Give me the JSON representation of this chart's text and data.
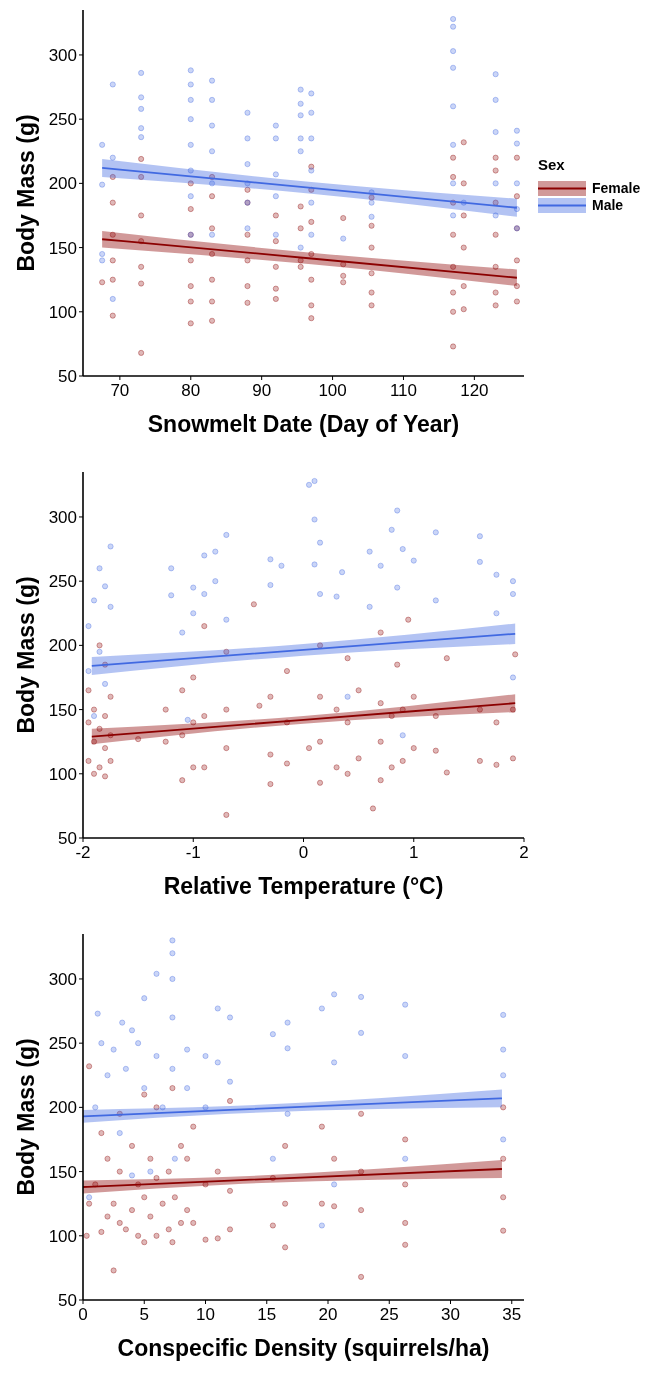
{
  "chart_data": [
    {
      "type": "scatter",
      "xlabel": "Snowmelt Date (Day of Year)",
      "ylabel": "Body Mass (g)",
      "legend_title": "Sex",
      "legend": "right",
      "grid": false,
      "xlim": [
        64.8,
        127
      ],
      "xticks": [
        70,
        80,
        90,
        100,
        110,
        120
      ],
      "ylim": [
        50,
        335
      ],
      "yticks": [
        50,
        100,
        150,
        200,
        250,
        300
      ],
      "series": [
        {
          "marker": "circle",
          "color": "#8b0000",
          "x": [
            67.5,
            69,
            69,
            69,
            69,
            69,
            69,
            73,
            73,
            73,
            73,
            73,
            73,
            73,
            80,
            80,
            80,
            80,
            80,
            80,
            80,
            83,
            83,
            83,
            83,
            83,
            83,
            83,
            88,
            88,
            88,
            88,
            88,
            88,
            92,
            92,
            92,
            92,
            92,
            95.5,
            95.5,
            95.5,
            95.5,
            97,
            97,
            97,
            97,
            97,
            97,
            97,
            101.5,
            101.5,
            101.5,
            101.5,
            105.5,
            105.5,
            105.5,
            105.5,
            105.5,
            105.5,
            117,
            117,
            117,
            117,
            117,
            117,
            117,
            117,
            118.5,
            118.5,
            118.5,
            118.5,
            118.5,
            118.5,
            123,
            123,
            123,
            123,
            123,
            123,
            123,
            126,
            126,
            126,
            126,
            126,
            126
          ],
          "values": [
            123,
            97,
            125,
            140,
            160,
            185,
            205,
            68,
            122,
            135,
            155,
            175,
            205,
            219,
            91,
            108,
            120,
            140,
            160,
            180,
            200,
            93,
            108,
            125,
            145,
            165,
            190,
            205,
            107,
            120,
            140,
            160,
            185,
            195,
            110,
            118,
            135,
            155,
            175,
            135,
            140,
            165,
            182,
            95,
            105,
            125,
            145,
            170,
            195,
            213,
            123,
            128,
            137,
            173,
            105,
            115,
            130,
            150,
            167,
            189,
            73,
            100,
            115,
            135,
            160,
            185,
            205,
            220,
            102,
            120,
            150,
            175,
            200,
            232,
            105,
            115,
            135,
            160,
            185,
            210,
            220,
            108,
            120,
            140,
            165,
            190,
            220
          ]
        },
        {
          "marker": "circle",
          "color": "#4169e1",
          "x": [
            67.5,
            67.5,
            67.5,
            67.5,
            69,
            69,
            69,
            73,
            73,
            73,
            73,
            73,
            80,
            80,
            80,
            80,
            80,
            80,
            80,
            80,
            83,
            83,
            83,
            83,
            83,
            83,
            88,
            88,
            88,
            88,
            88,
            88,
            92,
            92,
            92,
            92,
            92,
            95.5,
            95.5,
            95.5,
            95.5,
            95.5,
            95.5,
            97,
            97,
            97,
            97,
            97,
            97,
            101.5,
            105.5,
            105.5,
            105.5,
            117,
            117,
            117,
            117,
            117,
            117,
            117,
            117,
            118.5,
            123,
            123,
            123,
            123,
            123,
            126,
            126,
            126,
            126,
            126
          ],
          "values": [
            140,
            145,
            230,
            199,
            110,
            220,
            277,
            236,
            243,
            258,
            267,
            286,
            160,
            190,
            210,
            230,
            250,
            265,
            277,
            288,
            160,
            200,
            225,
            245,
            265,
            280,
            165,
            185,
            200,
            215,
            235,
            255,
            160,
            190,
            207,
            235,
            245,
            150,
            225,
            235,
            253,
            262,
            273,
            160,
            185,
            210,
            235,
            255,
            270,
            157,
            174,
            185,
            193,
            175,
            200,
            230,
            260,
            290,
            303,
            322,
            328,
            185,
            175,
            200,
            240,
            265,
            285,
            165,
            180,
            200,
            231,
            241
          ]
        },
        {
          "type": "line",
          "name": "Female",
          "color": "#8b0000",
          "x": [
            67.5,
            97,
            126
          ],
          "values": [
            156.5,
            141.5,
            126.5
          ],
          "lower": [
            150,
            137,
            120
          ],
          "upper": [
            163,
            146,
            133
          ]
        },
        {
          "type": "line",
          "name": "Male",
          "color": "#4169e1",
          "x": [
            67.5,
            97,
            126
          ],
          "values": [
            212,
            196.5,
            181
          ],
          "lower": [
            205,
            192,
            174
          ],
          "upper": [
            219,
            201,
            188
          ]
        }
      ]
    },
    {
      "type": "scatter",
      "xlabel": "Relative Temperature (°C)",
      "ylabel": "Body Mass (g)",
      "grid": false,
      "xlim": [
        -2,
        2
      ],
      "xticks": [
        -2,
        -1,
        0,
        1,
        2
      ],
      "ylim": [
        50,
        335
      ],
      "yticks": [
        50,
        100,
        150,
        200,
        250,
        300
      ],
      "series": [
        {
          "marker": "circle",
          "color": "#8b0000",
          "x": [
            -1.95,
            -1.95,
            -1.95,
            -1.9,
            -1.9,
            -1.9,
            -1.85,
            -1.85,
            -1.85,
            -1.8,
            -1.8,
            -1.8,
            -1.8,
            -1.75,
            -1.75,
            -1.75,
            -1.5,
            -1.25,
            -1.25,
            -1.1,
            -1.1,
            -1.1,
            -1.0,
            -1.0,
            -1.0,
            -0.9,
            -0.9,
            -0.9,
            -0.7,
            -0.7,
            -0.7,
            -0.7,
            -0.45,
            -0.4,
            -0.3,
            -0.3,
            -0.3,
            -0.15,
            -0.15,
            -0.15,
            0.05,
            0.15,
            0.15,
            0.15,
            0.15,
            0.3,
            0.3,
            0.4,
            0.4,
            0.4,
            0.5,
            0.5,
            0.63,
            0.7,
            0.7,
            0.7,
            0.7,
            0.8,
            0.8,
            0.85,
            0.9,
            0.9,
            0.95,
            1.0,
            1.0,
            1.2,
            1.2,
            1.3,
            1.3,
            1.6,
            1.6,
            1.75,
            1.75,
            1.9,
            1.9,
            1.92
          ],
          "values": [
            110,
            140,
            165,
            100,
            125,
            150,
            105,
            135,
            200,
            98,
            120,
            145,
            185,
            110,
            130,
            160,
            127,
            125,
            150,
            95,
            130,
            165,
            105,
            140,
            175,
            105,
            145,
            215,
            68,
            120,
            150,
            195,
            232,
            153,
            92,
            115,
            160,
            108,
            140,
            180,
            120,
            93,
            125,
            160,
            200,
            105,
            150,
            100,
            140,
            190,
            112,
            165,
            73,
            95,
            125,
            155,
            210,
            105,
            145,
            185,
            110,
            150,
            220,
            120,
            160,
            118,
            145,
            101,
            190,
            110,
            150,
            107,
            140,
            112,
            150,
            193
          ]
        },
        {
          "marker": "circle",
          "color": "#4169e1",
          "x": [
            -1.95,
            -1.95,
            -1.9,
            -1.9,
            -1.85,
            -1.85,
            -1.8,
            -1.8,
            -1.75,
            -1.75,
            -1.2,
            -1.2,
            -1.1,
            -1.05,
            -1.0,
            -1.0,
            -0.9,
            -0.9,
            -0.8,
            -0.8,
            -0.7,
            -0.7,
            -0.3,
            -0.3,
            -0.2,
            0.05,
            0.1,
            0.1,
            0.1,
            0.15,
            0.15,
            0.3,
            0.35,
            0.4,
            0.6,
            0.6,
            0.7,
            0.8,
            0.85,
            0.85,
            0.9,
            0.9,
            1.0,
            1.2,
            1.2,
            1.6,
            1.6,
            1.75,
            1.75,
            1.9,
            1.9,
            1.9
          ],
          "values": [
            180,
            215,
            145,
            235,
            195,
            260,
            170,
            246,
            230,
            277,
            239,
            260,
            210,
            142,
            225,
            245,
            240,
            270,
            250,
            273,
            220,
            286,
            247,
            267,
            262,
            325,
            328,
            298,
            263,
            240,
            280,
            238,
            257,
            160,
            230,
            273,
            262,
            290,
            305,
            245,
            275,
            130,
            266,
            288,
            235,
            285,
            265,
            255,
            225,
            250,
            240,
            175
          ]
        },
        {
          "type": "line",
          "color": "#8b0000",
          "x": [
            -1.92,
            0,
            1.92
          ],
          "values": [
            129,
            142,
            155
          ],
          "lower": [
            123,
            139,
            148
          ],
          "upper": [
            135,
            145,
            162
          ]
        },
        {
          "type": "line",
          "color": "#4169e1",
          "x": [
            -1.92,
            0,
            1.92
          ],
          "values": [
            184,
            196.5,
            209
          ],
          "lower": [
            177,
            192,
            201
          ],
          "upper": [
            191,
            201,
            217
          ]
        }
      ]
    },
    {
      "type": "scatter",
      "xlabel": "Conspecific Density (squirrels/ha)",
      "ylabel": "Body Mass (g)",
      "grid": false,
      "xlim": [
        0,
        36
      ],
      "xticks": [
        0,
        5,
        10,
        15,
        20,
        25,
        30,
        35
      ],
      "ylim": [
        50,
        335
      ],
      "yticks": [
        50,
        100,
        150,
        200,
        250,
        300
      ],
      "series": [
        {
          "marker": "circle",
          "color": "#8b0000",
          "x": [
            0.3,
            0.5,
            0.5,
            1,
            1.5,
            1.5,
            2,
            2,
            2.5,
            2.5,
            3,
            3,
            3,
            3.5,
            4,
            4,
            4.5,
            4.5,
            5,
            5,
            5,
            5.5,
            5.5,
            6,
            6,
            6,
            6.5,
            7,
            7,
            7.3,
            7.3,
            7.5,
            8,
            8,
            8.5,
            8.5,
            9,
            9,
            10,
            10,
            11,
            11,
            12,
            12,
            12,
            15.5,
            15.5,
            16.5,
            16.5,
            16.5,
            19.5,
            19.5,
            20.5,
            20.5,
            22.7,
            22.7,
            22.7,
            22.7,
            26.3,
            26.3,
            26.3,
            26.3,
            34.3,
            34.3,
            34.3,
            34.3
          ],
          "values": [
            100,
            125,
            232,
            140,
            103,
            180,
            115,
            160,
            73,
            125,
            110,
            150,
            195,
            105,
            120,
            170,
            100,
            140,
            95,
            130,
            210,
            115,
            160,
            100,
            145,
            200,
            125,
            105,
            150,
            95,
            215,
            130,
            110,
            170,
            120,
            160,
            110,
            185,
            97,
            140,
            98,
            150,
            105,
            135,
            205,
            108,
            145,
            91,
            125,
            170,
            125,
            185,
            123,
            160,
            68,
            120,
            150,
            195,
            93,
            110,
            140,
            175,
            104,
            130,
            160,
            200
          ]
        },
        {
          "marker": "circle",
          "color": "#4169e1",
          "x": [
            0.5,
            1,
            1.2,
            1.5,
            2,
            2.5,
            3,
            3.2,
            3.5,
            4,
            4,
            4.5,
            5,
            5,
            5.5,
            6,
            6,
            6.5,
            7.3,
            7.3,
            7.3,
            7.3,
            7.3,
            7.5,
            8.5,
            8.5,
            10,
            10,
            11,
            11,
            12,
            12,
            15.5,
            15.5,
            16.7,
            16.7,
            16.7,
            19.5,
            19.5,
            20.5,
            20.5,
            20.5,
            22.7,
            22.7,
            26.3,
            26.3,
            26.3,
            34.3,
            34.3,
            34.3,
            34.3
          ],
          "values": [
            130,
            200,
            273,
            250,
            225,
            245,
            180,
            266,
            230,
            260,
            147,
            250,
            285,
            215,
            150,
            304,
            240,
            200,
            330,
            320,
            300,
            270,
            230,
            160,
            245,
            215,
            240,
            200,
            277,
            235,
            270,
            220,
            257,
            160,
            266,
            246,
            195,
            277,
            108,
            288,
            235,
            140,
            286,
            258,
            280,
            240,
            160,
            272,
            245,
            225,
            175
          ]
        },
        {
          "type": "line",
          "color": "#8b0000",
          "x": [
            0,
            12,
            34.2
          ],
          "values": [
            138,
            143,
            152
          ],
          "lower": [
            133,
            140,
            145
          ],
          "upper": [
            143,
            146,
            159
          ]
        },
        {
          "type": "line",
          "color": "#4169e1",
          "x": [
            0,
            12,
            34.2
          ],
          "values": [
            193,
            198,
            207
          ],
          "lower": [
            188,
            195,
            200
          ],
          "upper": [
            198,
            201,
            214
          ]
        }
      ]
    }
  ]
}
